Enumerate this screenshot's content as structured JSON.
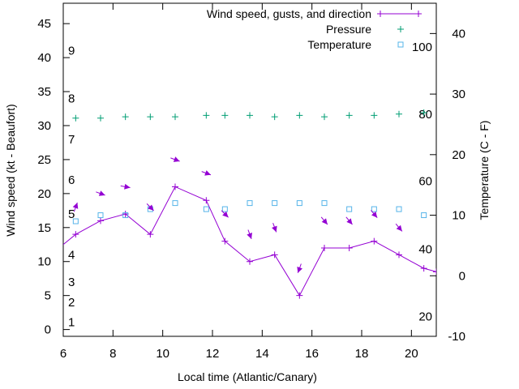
{
  "chart_data": {
    "type": "line",
    "xlabel": "Local time (Atlantic/Canary)",
    "ylabel": "Wind speed (kt - Beaufort)",
    "y2label": "Temperature (C - F)",
    "xlim": [
      6,
      21
    ],
    "ylim": [
      -1,
      48
    ],
    "y2lim": [
      -10,
      45
    ],
    "xticks": [
      6,
      8,
      10,
      12,
      14,
      16,
      18,
      20
    ],
    "yticks": [
      0,
      5,
      10,
      15,
      20,
      25,
      30,
      35,
      40,
      45
    ],
    "y2ticks": [
      -10,
      0,
      10,
      20,
      30,
      40
    ],
    "beaufort_labels": [
      {
        "label": "1",
        "y": 1.1
      },
      {
        "label": "2",
        "y": 4
      },
      {
        "label": "3",
        "y": 7
      },
      {
        "label": "4",
        "y": 11
      },
      {
        "label": "5",
        "y": 17
      },
      {
        "label": "6",
        "y": 22
      },
      {
        "label": "7",
        "y": 28
      },
      {
        "label": "8",
        "y": 34
      },
      {
        "label": "9",
        "y": 41
      }
    ],
    "fahrenheit_labels": [
      {
        "label": "20",
        "t": -6.7
      },
      {
        "label": "40",
        "t": 4.4
      },
      {
        "label": "60",
        "t": 15.6
      },
      {
        "label": "80",
        "t": 26.7
      },
      {
        "label": "100",
        "t": 37.8
      }
    ],
    "legend": {
      "placement": "top-right",
      "entries": [
        {
          "label": "Wind speed, gusts, and direction",
          "marker": "line-plus"
        },
        {
          "label": "Pressure",
          "marker": "plus"
        },
        {
          "label": "Temperature",
          "marker": "square"
        }
      ]
    },
    "series": [
      {
        "name": "Wind speed, gusts, and direction",
        "color": "#9400d3",
        "x": [
          5.5,
          6.5,
          7.5,
          8.5,
          9.5,
          10.5,
          11.75,
          12.5,
          13.5,
          14.5,
          15.5,
          16.5,
          17.5,
          18.5,
          19.5,
          20.5,
          21
        ],
        "y": [
          11,
          14,
          16,
          17,
          14,
          21,
          19,
          13,
          10,
          11,
          5,
          12,
          12,
          13,
          11,
          9,
          8.5
        ]
      },
      {
        "name": "Pressure",
        "color": "#009e73",
        "x": [
          6.5,
          7.5,
          8.5,
          9.5,
          10.5,
          11.75,
          12.5,
          13.5,
          14.5,
          15.5,
          16.5,
          17.5,
          18.5,
          19.5,
          20.5
        ],
        "y": [
          31.1,
          31.1,
          31.3,
          31.3,
          31.3,
          31.5,
          31.5,
          31.5,
          31.3,
          31.5,
          31.3,
          31.5,
          31.5,
          31.7,
          31.9
        ]
      },
      {
        "name": "Temperature",
        "color": "#56b4e9",
        "axis": "right",
        "x": [
          6.5,
          7.5,
          8.5,
          9.5,
          10.5,
          11.75,
          12.5,
          13.5,
          14.5,
          15.5,
          16.5,
          17.5,
          18.5,
          19.5,
          20.5
        ],
        "y": [
          9,
          10,
          10,
          11,
          12,
          11,
          11,
          12,
          12,
          12,
          12,
          11,
          11,
          11,
          10
        ]
      }
    ],
    "direction_arrows": {
      "color": "#9400d3",
      "x": [
        6.5,
        7.5,
        8.5,
        9.5,
        10.5,
        11.75,
        12.5,
        13.5,
        14.5,
        15.5,
        16.5,
        17.5,
        18.5,
        19.5
      ],
      "y": [
        18,
        20,
        21,
        18,
        25,
        23,
        17,
        14,
        15,
        9,
        16,
        16,
        17,
        15
      ],
      "direction_deg": [
        200,
        290,
        280,
        315,
        290,
        290,
        315,
        340,
        340,
        20,
        320,
        320,
        320,
        320
      ]
    }
  }
}
